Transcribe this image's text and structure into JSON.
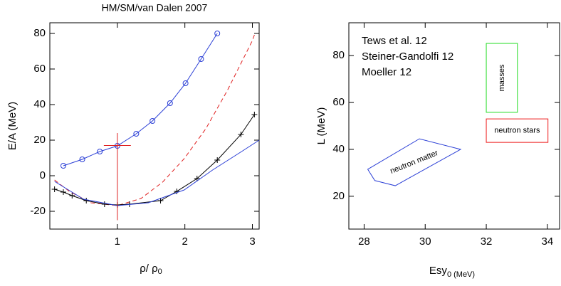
{
  "chart_data": [
    {
      "type": "line",
      "title": "HM/SM/van Dalen 2007",
      "xlabel": "ρ/ ρ",
      "xlabel_sub": "0",
      "ylabel": "E/A (MeV)",
      "xlim": [
        0,
        3.1
      ],
      "ylim": [
        -30,
        86
      ],
      "xticks": [
        1,
        2,
        3
      ],
      "yticks": [
        -20,
        0,
        20,
        40,
        60,
        80
      ],
      "series": [
        {
          "color": "#2b3fd6",
          "marker": "circle",
          "dash": false,
          "x": [
            0.2,
            0.48,
            0.74,
            1.0,
            1.28,
            1.52,
            1.78,
            2.01,
            2.24,
            2.48
          ],
          "values": [
            5.6,
            9.2,
            13.6,
            16.8,
            23.6,
            30.8,
            40.8,
            52,
            65.6,
            80
          ]
        },
        {
          "color": "#e02020",
          "marker": "none",
          "dash": true,
          "x": [
            0.07,
            0.29,
            0.61,
            1.0,
            1.35,
            1.67,
            1.99,
            2.31,
            2.63,
            3.0,
            3.03
          ],
          "values": [
            -2.4,
            -8.8,
            -15.2,
            -16.8,
            -12.8,
            -3.6,
            9.6,
            26.4,
            48,
            76,
            79.2
          ]
        },
        {
          "color": "#000000",
          "marker": "plus",
          "dash": false,
          "x": [
            0.07,
            0.2,
            0.33,
            0.54,
            0.81,
            1.0,
            1.18,
            1.64,
            1.88,
            2.18,
            2.48,
            2.83,
            3.03
          ],
          "values": [
            -7.6,
            -9.2,
            -11.2,
            -14,
            -16,
            -16.4,
            -16,
            -14,
            -8.8,
            -1.6,
            8.8,
            23.2,
            34.4
          ]
        },
        {
          "color": "#2b3fd6",
          "marker": "none",
          "dash": false,
          "x": [
            0.07,
            0.5,
            1.0,
            1.46,
            1.99,
            2.41,
            2.84,
            3.1
          ],
          "values": [
            -3.2,
            -13.2,
            -16.8,
            -15.2,
            -8,
            3.2,
            13.6,
            20
          ]
        }
      ],
      "errorbar": {
        "color": "#e02020",
        "x": 1,
        "y": 17,
        "xlow": 0.8,
        "xhigh": 1.2,
        "ylow": -25,
        "yhigh": 24
      }
    },
    {
      "type": "region",
      "xlabel": "Esy",
      "xlabel_sub": "0 (MeV)",
      "ylabel": "L (MeV)",
      "xlim": [
        27.5,
        34.4
      ],
      "ylim": [
        6,
        94
      ],
      "xticks": [
        28,
        30,
        32,
        34
      ],
      "yticks": [
        20,
        40,
        60,
        80
      ],
      "series": [
        {
          "name": "Tews et al. 12",
          "color": "#2b3fd6",
          "label": "neutron matter",
          "x": [
            28.12,
            28.35,
            29.02,
            31.16,
            29.81
          ],
          "values": [
            31.5,
            26.7,
            24.5,
            40,
            44.5
          ]
        },
        {
          "name": "Steiner-Gandolfi 12",
          "color": "#ee1a1a",
          "label": "neutron stars",
          "x": [
            32,
            34.02,
            34.02,
            32
          ],
          "values": [
            53,
            53,
            43,
            43
          ]
        },
        {
          "name": "Moeller 12",
          "color": "#22dd22",
          "label": "masses",
          "x": [
            32,
            33.02,
            33.02,
            32
          ],
          "values": [
            85.2,
            85.2,
            55.8,
            55.8
          ]
        }
      ]
    }
  ]
}
